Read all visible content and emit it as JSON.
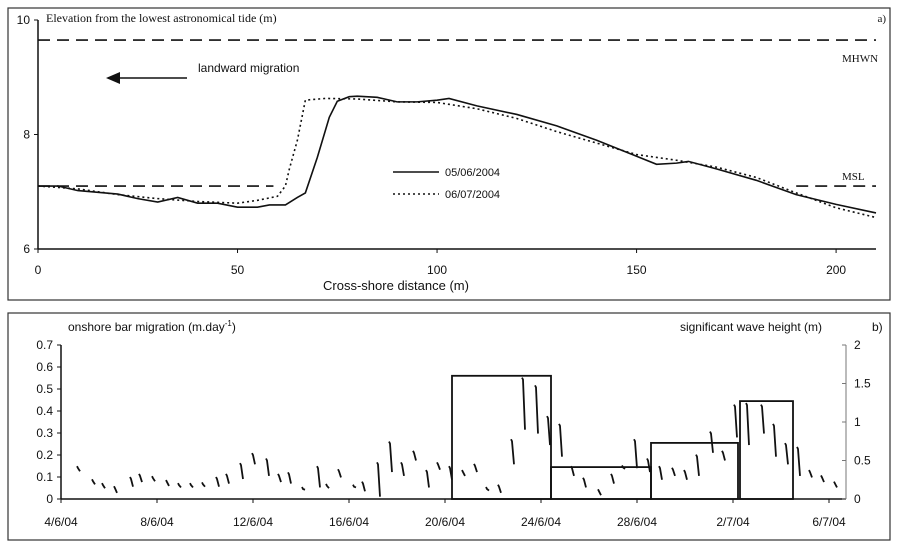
{
  "chart_data": [
    {
      "type": "line",
      "panel_label": "a)",
      "ylabel": "Elevation from the lowest astronomical tide (m)",
      "xlabel": "Cross-shore distance (m)",
      "xlim": [
        0,
        210
      ],
      "ylim": [
        6,
        10
      ],
      "xticks": [
        0,
        50,
        100,
        150,
        200
      ],
      "yticks": [
        6,
        8,
        10
      ],
      "grid": false,
      "legend_position": "center",
      "annotation": "landward migration",
      "reference_lines": [
        {
          "name": "MHWN",
          "y": 9.65
        },
        {
          "name": "MSL",
          "y": 7.1
        }
      ],
      "series": [
        {
          "name": "05/06/2004",
          "style": "solid",
          "x": [
            0,
            5,
            10,
            15,
            20,
            25,
            30,
            35,
            40,
            45,
            50,
            55,
            58,
            62,
            65,
            67,
            70,
            73,
            75,
            78,
            80,
            85,
            90,
            95,
            100,
            103,
            110,
            120,
            130,
            140,
            150,
            155,
            160,
            163,
            170,
            180,
            190,
            200,
            210
          ],
          "y": [
            7.1,
            7.1,
            7.02,
            6.99,
            6.96,
            6.88,
            6.82,
            6.9,
            6.8,
            6.8,
            6.73,
            6.73,
            6.77,
            6.77,
            6.9,
            6.98,
            7.6,
            8.3,
            8.58,
            8.66,
            8.67,
            8.65,
            8.57,
            8.57,
            8.6,
            8.63,
            8.5,
            8.35,
            8.15,
            7.9,
            7.62,
            7.48,
            7.5,
            7.53,
            7.4,
            7.2,
            6.95,
            6.78,
            6.63
          ]
        },
        {
          "name": "06/07/2004",
          "style": "dotted",
          "x": [
            0,
            10,
            20,
            30,
            40,
            50,
            55,
            60,
            62,
            63,
            65,
            67,
            72,
            80,
            90,
            100,
            110,
            120,
            130,
            140,
            150,
            160,
            170,
            180,
            190,
            200,
            210
          ],
          "y": [
            7.1,
            7.05,
            6.95,
            6.88,
            6.83,
            6.8,
            6.85,
            6.92,
            7.1,
            7.4,
            7.9,
            8.6,
            8.63,
            8.62,
            8.57,
            8.56,
            8.45,
            8.28,
            8.05,
            7.85,
            7.65,
            7.55,
            7.43,
            7.25,
            6.98,
            6.72,
            6.55
          ]
        }
      ]
    },
    {
      "type": "bar",
      "panel_label": "b)",
      "ylabel_left": "onshore bar migration (m.day",
      "ylabel_left_sup": "-1",
      "ylabel_left_close": ")",
      "ylabel_right": "significant wave height (m)",
      "ylim_left": [
        0,
        0.7
      ],
      "ylim_right": [
        0,
        2
      ],
      "yticks_left": [
        "0",
        "0.1",
        "0.2",
        "0.3",
        "0.4",
        "0.5",
        "0.6",
        "0.7"
      ],
      "yticks_right": [
        "0",
        "0.5",
        "1",
        "1.5",
        "2"
      ],
      "xticks": [
        "4/6/04",
        "8/6/04",
        "12/6/04",
        "16/6/04",
        "20/6/04",
        "24/6/04",
        "28/6/04",
        "2/7/04",
        "6/7/04"
      ],
      "xlim": [
        "2004-06-04T00:00",
        "2004-07-06T19:00"
      ],
      "grid": false,
      "bar_migration": [
        {
          "start": "2004-06-20T07:00",
          "end": "2004-06-24T10:00",
          "rate": 0.56
        },
        {
          "start": "2004-06-24T10:00",
          "end": "2004-06-28T14:00",
          "rate": 0.145
        },
        {
          "start": "2004-06-28T14:00",
          "end": "2004-07-02T05:00",
          "rate": 0.255
        },
        {
          "start": "2004-07-02T07:00",
          "end": "2004-07-04T12:00",
          "rate": 0.445
        }
      ],
      "wave_height": [
        [
          "2004-06-04T17:00",
          0.4,
          0.36
        ],
        [
          "2004-06-05T08:00",
          0.23,
          0.19
        ],
        [
          "2004-06-05T18:00",
          0.18,
          0.14
        ],
        [
          "2004-06-06T06:00",
          0.14,
          0.08
        ],
        [
          "2004-06-06T22:00",
          0.26,
          0.16
        ],
        [
          "2004-06-07T07:00",
          0.3,
          0.22
        ],
        [
          "2004-06-07T20:00",
          0.27,
          0.23
        ],
        [
          "2004-06-08T10:00",
          0.22,
          0.17
        ],
        [
          "2004-06-08T22:00",
          0.18,
          0.15
        ],
        [
          "2004-06-09T10:00",
          0.18,
          0.15
        ],
        [
          "2004-06-09T22:00",
          0.19,
          0.16
        ],
        [
          "2004-06-10T12:00",
          0.26,
          0.16
        ],
        [
          "2004-06-10T22:00",
          0.3,
          0.2
        ],
        [
          "2004-06-11T12:00",
          0.44,
          0.26
        ],
        [
          "2004-06-12T00:00",
          0.57,
          0.45
        ],
        [
          "2004-06-12T14:00",
          0.5,
          0.3
        ],
        [
          "2004-06-13T02:00",
          0.3,
          0.22
        ],
        [
          "2004-06-13T12:00",
          0.32,
          0.2
        ],
        [
          "2004-06-14T02:00",
          0.13,
          0.12
        ],
        [
          "2004-06-14T17:00",
          0.4,
          0.15
        ],
        [
          "2004-06-15T02:00",
          0.17,
          0.14
        ],
        [
          "2004-06-15T14:00",
          0.36,
          0.28
        ],
        [
          "2004-06-16T05:00",
          0.16,
          0.15
        ],
        [
          "2004-06-16T14:00",
          0.2,
          0.1
        ],
        [
          "2004-06-17T05:00",
          0.45,
          0.03
        ],
        [
          "2004-06-17T17:00",
          0.72,
          0.35
        ],
        [
          "2004-06-18T05:00",
          0.45,
          0.3
        ],
        [
          "2004-06-18T17:00",
          0.6,
          0.5
        ],
        [
          "2004-06-19T06:00",
          0.35,
          0.15
        ],
        [
          "2004-06-19T17:00",
          0.45,
          0.38
        ],
        [
          "2004-06-20T05:00",
          0.4,
          0.25
        ],
        [
          "2004-06-20T18:00",
          0.35,
          0.3
        ],
        [
          "2004-06-21T06:00",
          0.43,
          0.35
        ],
        [
          "2004-06-21T18:00",
          0.13,
          0.11
        ],
        [
          "2004-06-22T06:00",
          0.16,
          0.08
        ],
        [
          "2004-06-22T19:00",
          0.75,
          0.45
        ],
        [
          "2004-06-23T06:00",
          1.55,
          0.9
        ],
        [
          "2004-06-23T19:00",
          1.45,
          0.85
        ],
        [
          "2004-06-24T07:00",
          1.05,
          0.7
        ],
        [
          "2004-06-24T19:00",
          0.95,
          0.55
        ],
        [
          "2004-06-25T07:00",
          0.4,
          0.3
        ],
        [
          "2004-06-25T19:00",
          0.25,
          0.15
        ],
        [
          "2004-06-26T10:00",
          0.1,
          0.05
        ],
        [
          "2004-06-26T23:00",
          0.3,
          0.2
        ],
        [
          "2004-06-27T10:00",
          0.41,
          0.39
        ],
        [
          "2004-06-27T22:00",
          0.75,
          0.4
        ],
        [
          "2004-06-28T11:00",
          0.5,
          0.35
        ],
        [
          "2004-06-28T23:00",
          0.4,
          0.25
        ],
        [
          "2004-06-29T12:00",
          0.38,
          0.3
        ],
        [
          "2004-06-30T00:00",
          0.35,
          0.25
        ],
        [
          "2004-06-30T12:00",
          0.55,
          0.3
        ],
        [
          "2004-07-01T02:00",
          0.85,
          0.6
        ],
        [
          "2004-07-01T14:00",
          0.6,
          0.5
        ],
        [
          "2004-07-02T02:00",
          1.2,
          0.8
        ],
        [
          "2004-07-02T14:00",
          1.22,
          0.7
        ],
        [
          "2004-07-03T05:00",
          1.2,
          0.85
        ],
        [
          "2004-07-03T17:00",
          0.95,
          0.55
        ],
        [
          "2004-07-04T05:00",
          0.7,
          0.45
        ],
        [
          "2004-07-04T17:00",
          0.65,
          0.3
        ],
        [
          "2004-07-05T05:00",
          0.35,
          0.28
        ],
        [
          "2004-07-05T17:00",
          0.28,
          0.22
        ],
        [
          "2004-07-06T06:00",
          0.2,
          0.15
        ]
      ]
    }
  ]
}
